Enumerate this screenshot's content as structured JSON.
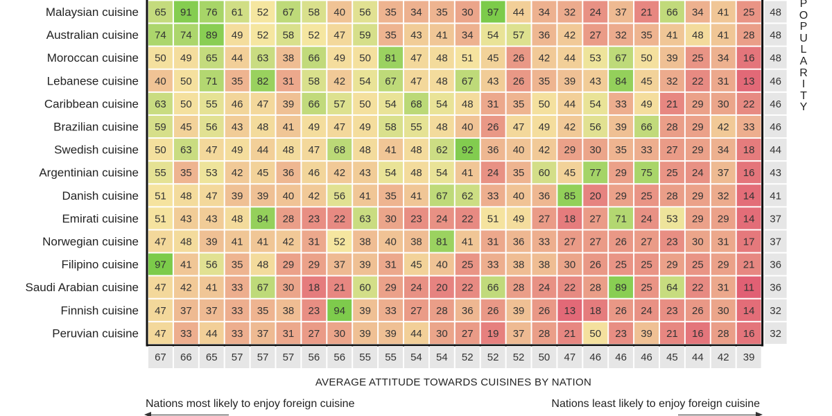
{
  "chart_data": {
    "type": "heatmap",
    "xlabel": "AVERAGE ATTITUDE TOWARDS CUISINES BY NATION",
    "side_label": "POPULARITY",
    "note_left": "Nations most likely to enjoy foreign cuisine",
    "note_right": "Nations least likely to enjoy foreign cuisine",
    "rows": [
      "Malaysian cuisine",
      "Australian cuisine",
      "Moroccan cuisine",
      "Lebanese cuisine",
      "Caribbean cuisine",
      "Brazilian cuisine",
      "Swedish cuisine",
      "Argentinian cuisine",
      "Danish cuisine",
      "Emirati cuisine",
      "Norwegian cuisine",
      "Filipino cuisine",
      "Saudi Arabian cuisine",
      "Finnish cuisine",
      "Peruvian cuisine"
    ],
    "values": [
      [
        65,
        91,
        76,
        61,
        52,
        67,
        58,
        40,
        56,
        35,
        34,
        35,
        30,
        97,
        44,
        34,
        32,
        24,
        37,
        21,
        66,
        34,
        41,
        25
      ],
      [
        74,
        74,
        89,
        49,
        52,
        58,
        52,
        47,
        59,
        35,
        43,
        41,
        34,
        54,
        57,
        36,
        42,
        27,
        32,
        35,
        41,
        48,
        41,
        28
      ],
      [
        50,
        49,
        65,
        44,
        63,
        38,
        66,
        49,
        50,
        81,
        47,
        48,
        51,
        45,
        26,
        42,
        44,
        53,
        67,
        50,
        39,
        25,
        34,
        16
      ],
      [
        40,
        50,
        71,
        35,
        82,
        31,
        58,
        42,
        54,
        67,
        47,
        48,
        67,
        43,
        26,
        35,
        39,
        43,
        84,
        45,
        32,
        22,
        31,
        13
      ],
      [
        63,
        50,
        55,
        46,
        47,
        39,
        66,
        57,
        50,
        54,
        68,
        54,
        48,
        31,
        35,
        50,
        44,
        54,
        33,
        49,
        21,
        29,
        30,
        22
      ],
      [
        59,
        45,
        56,
        43,
        48,
        41,
        49,
        47,
        49,
        58,
        55,
        48,
        40,
        26,
        47,
        49,
        42,
        56,
        39,
        66,
        28,
        29,
        42,
        33
      ],
      [
        50,
        63,
        47,
        49,
        44,
        48,
        47,
        68,
        48,
        41,
        48,
        62,
        92,
        36,
        40,
        42,
        29,
        30,
        35,
        33,
        27,
        29,
        34,
        18
      ],
      [
        55,
        35,
        53,
        42,
        45,
        36,
        46,
        42,
        43,
        54,
        48,
        54,
        41,
        24,
        35,
        60,
        45,
        77,
        29,
        75,
        25,
        24,
        37,
        16
      ],
      [
        51,
        48,
        47,
        39,
        39,
        40,
        42,
        56,
        41,
        35,
        41,
        67,
        62,
        33,
        40,
        36,
        85,
        20,
        29,
        25,
        28,
        29,
        32,
        14
      ],
      [
        51,
        43,
        43,
        48,
        84,
        28,
        23,
        22,
        63,
        30,
        23,
        24,
        22,
        51,
        49,
        27,
        18,
        27,
        71,
        24,
        53,
        29,
        29,
        14
      ],
      [
        47,
        48,
        39,
        41,
        41,
        42,
        31,
        52,
        38,
        40,
        38,
        81,
        41,
        31,
        36,
        33,
        27,
        27,
        26,
        27,
        23,
        30,
        31,
        17
      ],
      [
        97,
        41,
        56,
        35,
        48,
        29,
        29,
        37,
        39,
        31,
        45,
        40,
        25,
        33,
        38,
        38,
        30,
        26,
        25,
        25,
        29,
        25,
        29,
        21
      ],
      [
        47,
        42,
        41,
        33,
        67,
        30,
        18,
        21,
        60,
        29,
        24,
        20,
        22,
        66,
        28,
        24,
        22,
        28,
        89,
        25,
        64,
        22,
        31,
        11
      ],
      [
        47,
        37,
        37,
        33,
        35,
        38,
        23,
        94,
        39,
        33,
        27,
        28,
        36,
        26,
        39,
        26,
        13,
        18,
        26,
        24,
        23,
        26,
        30,
        14
      ],
      [
        47,
        33,
        44,
        33,
        37,
        31,
        27,
        30,
        39,
        39,
        44,
        30,
        27,
        19,
        37,
        28,
        21,
        50,
        23,
        39,
        21,
        16,
        28,
        16
      ]
    ],
    "row_popularity": [
      48,
      48,
      48,
      46,
      46,
      46,
      44,
      43,
      41,
      37,
      37,
      36,
      36,
      32,
      32
    ],
    "column_average": [
      67,
      66,
      65,
      57,
      57,
      57,
      56,
      56,
      55,
      55,
      54,
      54,
      52,
      52,
      52,
      50,
      47,
      46,
      46,
      46,
      45,
      44,
      42,
      39
    ],
    "color_scale": {
      "low": "#e05a72",
      "mid": "#f5e6a0",
      "high": "#7ccb4a"
    },
    "top_rows_cropped": true
  }
}
